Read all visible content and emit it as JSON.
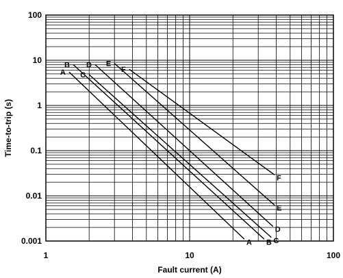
{
  "chart_data": {
    "type": "line",
    "title": "",
    "xlabel": "Fault current (A)",
    "ylabel": "Time-to-trip (s)",
    "x_scale": "log",
    "y_scale": "log",
    "xlim": [
      1,
      100
    ],
    "ylim": [
      0.001,
      100
    ],
    "grid": true,
    "x_ticks": [
      {
        "value": 1,
        "label": "1"
      },
      {
        "value": 10,
        "label": "10"
      },
      {
        "value": 100,
        "label": "100"
      }
    ],
    "y_ticks": [
      {
        "value": 100,
        "label": "100"
      },
      {
        "value": 10,
        "label": "10"
      },
      {
        "value": 1,
        "label": "1"
      },
      {
        "value": 0.1,
        "label": "0.1"
      },
      {
        "value": 0.01,
        "label": "0.01"
      },
      {
        "value": 0.001,
        "label": "0.001"
      }
    ],
    "series": [
      {
        "name": "A",
        "x": [
          1.45,
          24
        ],
        "y": [
          5.5,
          0.0011
        ]
      },
      {
        "name": "B",
        "x": [
          1.55,
          33
        ],
        "y": [
          8.0,
          0.0011
        ]
      },
      {
        "name": "C",
        "x": [
          2.0,
          37
        ],
        "y": [
          4.8,
          0.0012
        ]
      },
      {
        "name": "D",
        "x": [
          2.2,
          38
        ],
        "y": [
          8.0,
          0.0021
        ]
      },
      {
        "name": "E",
        "x": [
          3.0,
          39
        ],
        "y": [
          8.5,
          0.0062
        ]
      },
      {
        "name": "F",
        "x": [
          3.8,
          39
        ],
        "y": [
          6.3,
          0.029
        ]
      }
    ]
  }
}
